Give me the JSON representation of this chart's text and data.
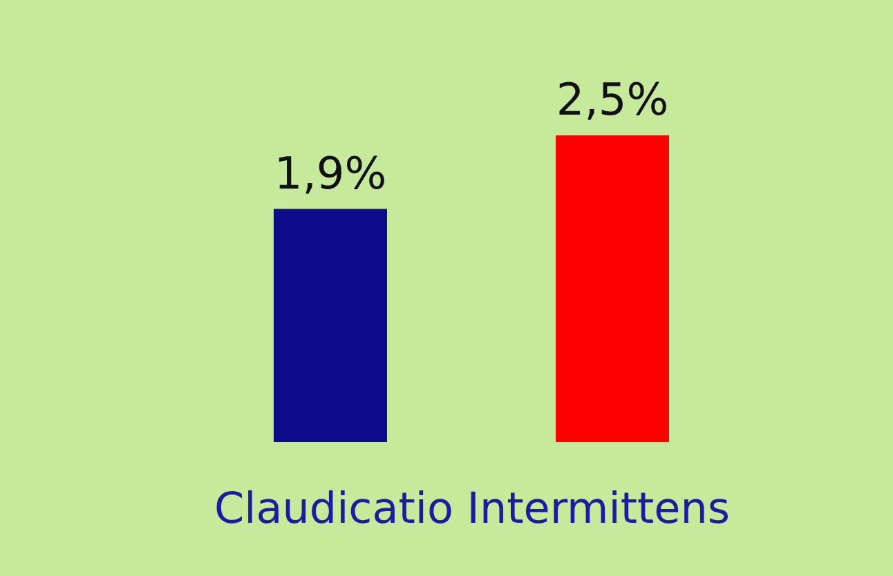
{
  "chart_data": {
    "type": "bar",
    "xlabel": "Claudicatio Intermittens",
    "categories": [
      null,
      null
    ],
    "values": [
      1.9,
      2.5
    ],
    "colors": [
      "#0c0c8a",
      "#ff0000"
    ],
    "value_labels": [
      "1,9%",
      "2,5%"
    ],
    "legend": false,
    "grid": false
  }
}
